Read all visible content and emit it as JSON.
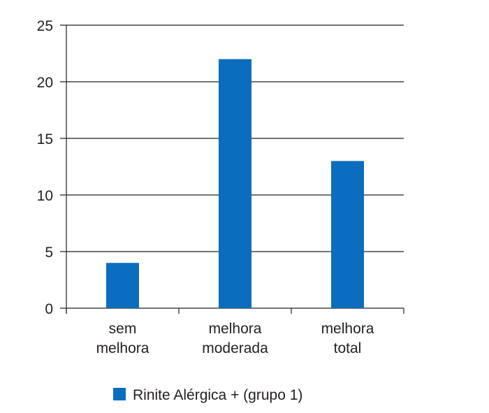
{
  "chart_data": {
    "type": "bar",
    "categories": [
      "sem melhora",
      "melhora moderada",
      "melhora total"
    ],
    "series": [
      {
        "name": "Rinite Alérgica + (grupo 1)",
        "color": "#0b6dbd",
        "values": [
          4,
          22,
          13
        ]
      }
    ],
    "ylim": [
      0,
      25
    ],
    "yticks": [
      0,
      5,
      10,
      15,
      20,
      25
    ],
    "grid": true
  }
}
